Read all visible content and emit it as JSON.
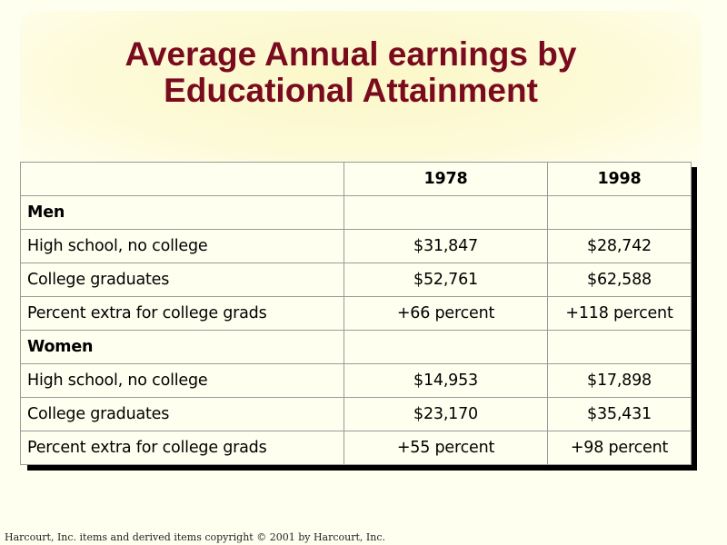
{
  "slide": {
    "title_line1": "Average Annual earnings by",
    "title_line2": "Educational Attainment",
    "title_color": "#7a0a1e",
    "background_color": "#fffff0"
  },
  "table": {
    "headers": [
      "",
      "1978",
      "1998"
    ],
    "rows": [
      {
        "type": "section",
        "label": "Men",
        "v1978": "",
        "v1998": ""
      },
      {
        "type": "data",
        "label": "High school, no college",
        "v1978": "$31,847",
        "v1998": "$28,742"
      },
      {
        "type": "data",
        "label": "College graduates",
        "v1978": "$52,761",
        "v1998": "$62,588"
      },
      {
        "type": "data",
        "label": "Percent extra for college grads",
        "v1978": "+66 percent",
        "v1998": "+118 percent"
      },
      {
        "type": "section",
        "label": "Women",
        "v1978": "",
        "v1998": ""
      },
      {
        "type": "data",
        "label": "High school, no college",
        "v1978": "$14,953",
        "v1998": "$17,898"
      },
      {
        "type": "data",
        "label": "College graduates",
        "v1978": "$23,170",
        "v1998": "$35,431"
      },
      {
        "type": "data",
        "label": "Percent extra for college grads",
        "v1978": "+55 percent",
        "v1998": "+98 percent"
      }
    ]
  },
  "footer": {
    "copyright": "Harcourt, Inc. items and derived items copyright © 2001 by Harcourt, Inc."
  }
}
